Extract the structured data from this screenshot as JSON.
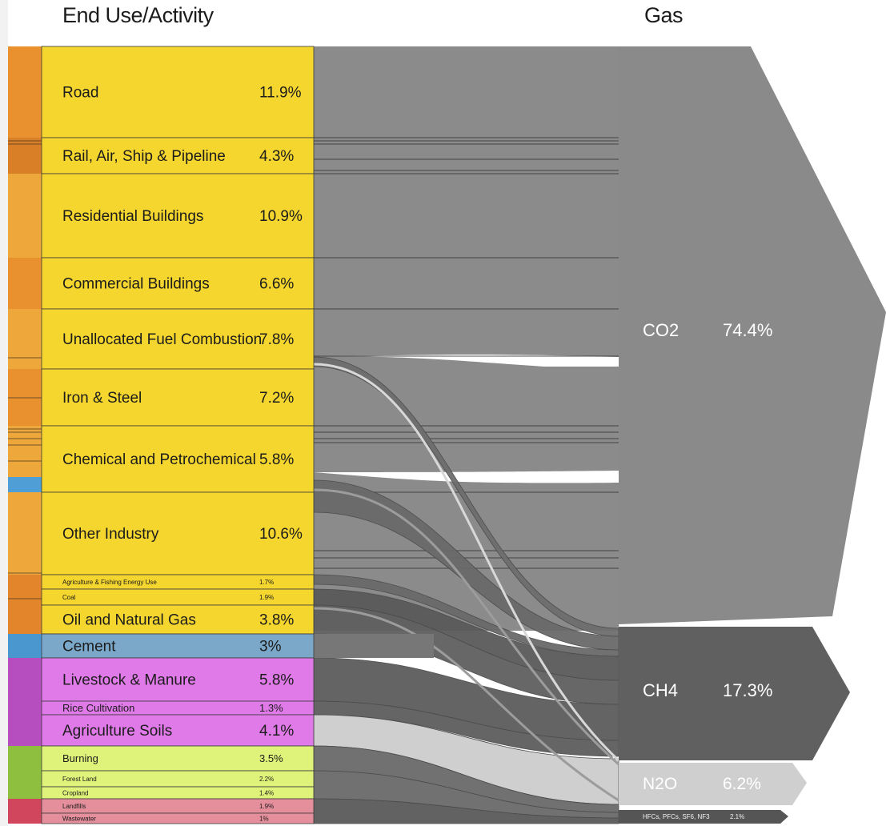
{
  "header": {
    "left_title": "End Use/Activity",
    "right_title": "Gas"
  },
  "colors": {
    "energy": "#f5d62e",
    "cement": "#7ba8c9",
    "agriculture": "#e07ae8",
    "land_use": "#dff27a",
    "waste": "#e48f9b",
    "co2": "#8a8a8a",
    "ch4": "#606060",
    "n2o": "#cfcfcf",
    "fgas": "#555555"
  },
  "activities": [
    {
      "label": "Road",
      "value": "11.9%",
      "group": "energy",
      "size": "large"
    },
    {
      "label": "Rail, Air, Ship & Pipeline",
      "value": "4.3%",
      "group": "energy",
      "size": "large"
    },
    {
      "label": "Residential Buildings",
      "value": "10.9%",
      "group": "energy",
      "size": "large"
    },
    {
      "label": "Commercial Buildings",
      "value": "6.6%",
      "group": "energy",
      "size": "large"
    },
    {
      "label": "Unallocated Fuel Combustion",
      "value": "7.8%",
      "group": "energy",
      "size": "large"
    },
    {
      "label": "Iron & Steel",
      "value": "7.2%",
      "group": "energy",
      "size": "large"
    },
    {
      "label": "Chemical and Petrochemical",
      "value": "5.8%",
      "group": "energy",
      "size": "large"
    },
    {
      "label": "Other Industry",
      "value": "10.6%",
      "group": "energy",
      "size": "large"
    },
    {
      "label": "Agriculture & Fishing Energy Use",
      "value": "1.7%",
      "group": "energy",
      "size": "tiny"
    },
    {
      "label": "Coal",
      "value": "1.9%",
      "group": "energy",
      "size": "tiny"
    },
    {
      "label": "Oil and Natural Gas",
      "value": "3.8%",
      "group": "energy",
      "size": "large"
    },
    {
      "label": "Cement",
      "value": "3%",
      "group": "cement",
      "size": "large"
    },
    {
      "label": "Livestock & Manure",
      "value": "5.8%",
      "group": "agriculture",
      "size": "large"
    },
    {
      "label": "Rice Cultivation",
      "value": "1.3%",
      "group": "agriculture",
      "size": "small"
    },
    {
      "label": "Agriculture Soils",
      "value": "4.1%",
      "group": "agriculture",
      "size": "large"
    },
    {
      "label": "Burning",
      "value": "3.5%",
      "group": "land_use",
      "size": "small"
    },
    {
      "label": "Forest Land",
      "value": "2.2%",
      "group": "land_use",
      "size": "tiny"
    },
    {
      "label": "Cropland",
      "value": "1.4%",
      "group": "land_use",
      "size": "tiny"
    },
    {
      "label": "Landfills",
      "value": "1.9%",
      "group": "waste",
      "size": "tiny"
    },
    {
      "label": "Wastewater",
      "value": "1%",
      "group": "waste",
      "size": "tiny"
    }
  ],
  "gases": [
    {
      "label": "CO2",
      "value": "74.4%",
      "color_key": "co2"
    },
    {
      "label": "CH4",
      "value": "17.3%",
      "color_key": "ch4"
    },
    {
      "label": "N2O",
      "value": "6.2%",
      "color_key": "n2o"
    },
    {
      "label": "HFCs, PFCs, SF6, NF3",
      "value": "2.1%",
      "color_key": "fgas"
    }
  ]
}
